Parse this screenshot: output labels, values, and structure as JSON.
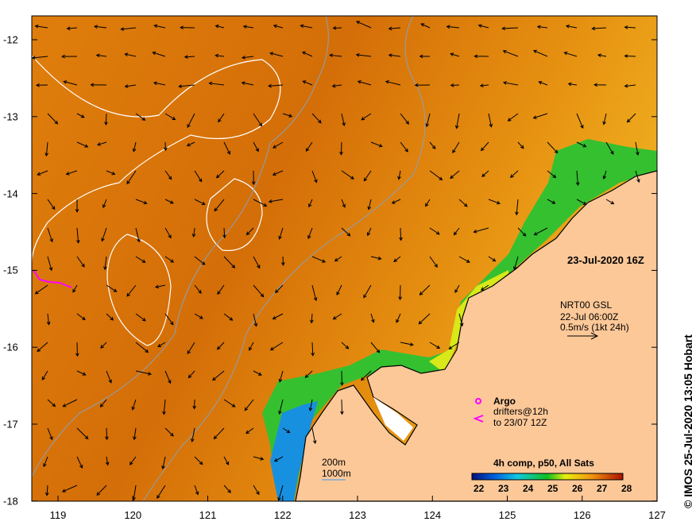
{
  "map": {
    "title_time": "23-Jul-2020 16Z",
    "current_source": {
      "line1": "NRT00 GSL",
      "line2": "22-Jul 06:00Z",
      "scale": "0.5m/s (1kt 24h)"
    },
    "legend_argo": "Argo",
    "legend_drifters": "drifters@12h",
    "legend_drifters_to": "to 23/07 12Z",
    "bathymetry": {
      "contour1": "200m",
      "contour2": "1000m"
    },
    "colorbar": {
      "title": "4h comp, p50, All Sats",
      "ticks": [
        "22",
        "23",
        "24",
        "25",
        "26",
        "27",
        "28"
      ],
      "range": [
        22,
        28
      ]
    },
    "credit": "© IMOS 25-Jul-2020 13:05 Hobart",
    "x_ticks": [
      "119",
      "120",
      "121",
      "122",
      "123",
      "124",
      "125",
      "126",
      "127"
    ],
    "y_ticks": [
      "-12",
      "-13",
      "-14",
      "-15",
      "-16",
      "-17",
      "-18"
    ],
    "colors": {
      "land": "#fdc898",
      "ocean_warm": "#d9730a",
      "ocean_mid": "#e8920f",
      "shelf_green": "#2fc32f",
      "argo": "#ff00ff"
    }
  }
}
